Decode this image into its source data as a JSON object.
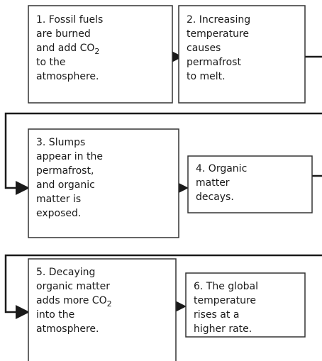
{
  "nodes": [
    {
      "lines": [
        "1. Fossil fuels",
        "are burned",
        {
          "text": "and add CO",
          "sub": "2"
        },
        "to the",
        "atmosphere."
      ]
    },
    {
      "lines": [
        "2. Increasing",
        "temperature",
        "causes",
        "permafrost",
        "to melt."
      ]
    },
    {
      "lines": [
        "3. Slumps",
        "appear in the",
        "permafrost,",
        "and organic",
        "matter is",
        "exposed."
      ]
    },
    {
      "lines": [
        "4. Organic",
        "matter",
        "decays."
      ]
    },
    {
      "lines": [
        "5. Decaying",
        "organic matter",
        {
          "text": "adds more CO",
          "sub": "2"
        },
        "into the",
        "atmosphere."
      ]
    },
    {
      "lines": [
        "6. The global",
        "temperature",
        "rises at a",
        "higher rate."
      ]
    }
  ]
}
